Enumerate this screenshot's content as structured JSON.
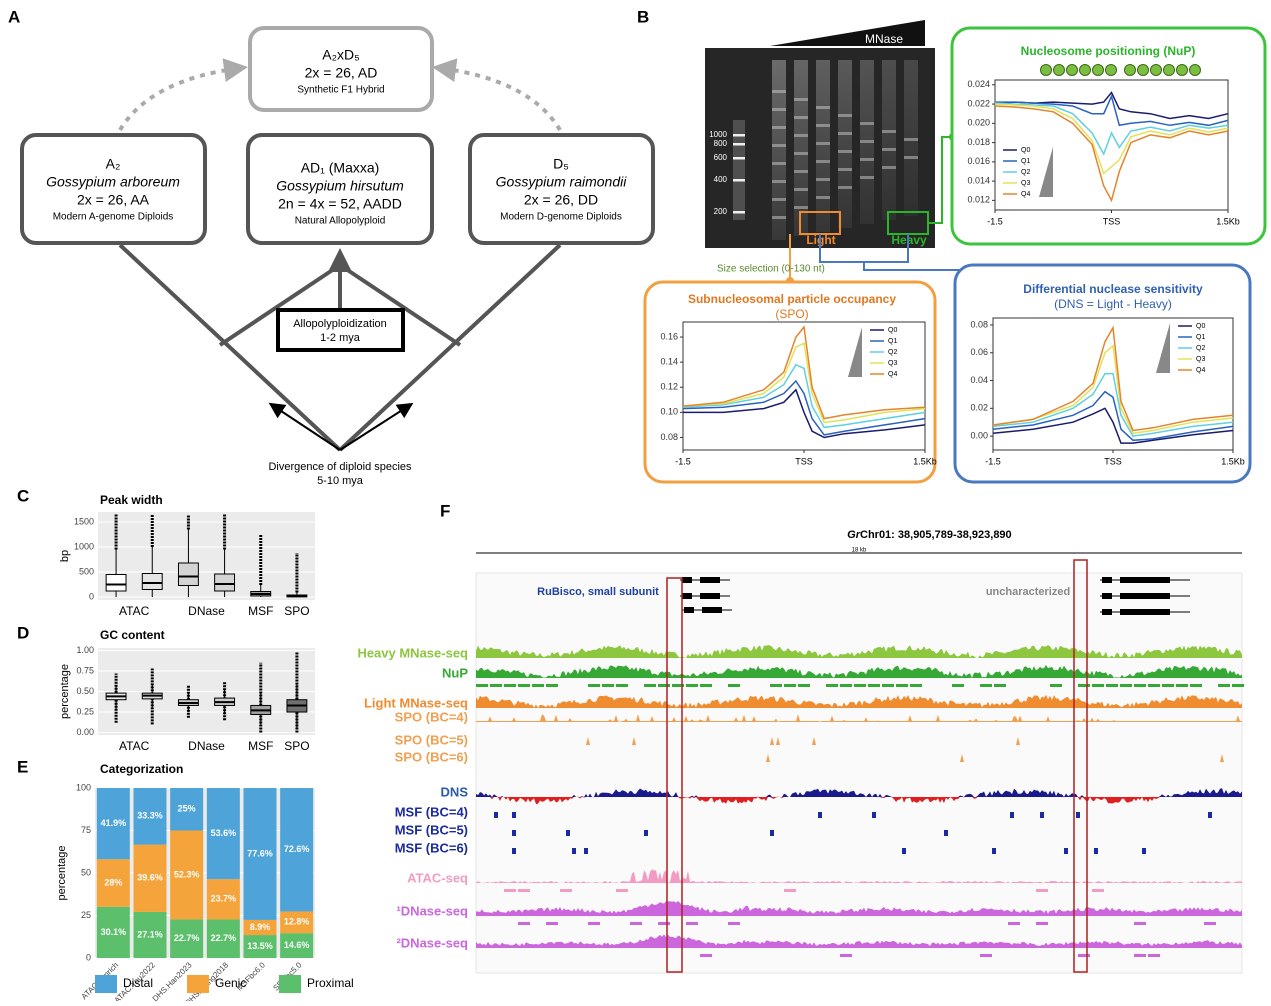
{
  "panel_labels": {
    "A": "A",
    "B": "B",
    "C": "C",
    "D": "D",
    "E": "E",
    "F": "F"
  },
  "diagram": {
    "hybrid": {
      "name": "A₂xD₅",
      "line1": "2x = 26, AD",
      "line2": "Synthetic F1 Hybrid"
    },
    "a2": {
      "name": "A₂",
      "species": "Gossypium arboreum",
      "ploidy": "2x = 26, AA",
      "desc": "Modern A-genome Diploids"
    },
    "ad1": {
      "name": "AD₁ (Maxxa)",
      "species": "Gossypium hirsutum",
      "ploidy": "2n = 4x = 52, AADD",
      "desc": "Natural Allopolyploid"
    },
    "d5": {
      "name": "D₅",
      "species": "Gossypium raimondii",
      "ploidy": "2x = 26, DD",
      "desc": "Modern D-genome Diploids"
    },
    "event": {
      "line1": "Allopolyploidization",
      "line2": "1-2 mya"
    },
    "divergence": {
      "line1": "Divergence of diploid species",
      "line2": "5-10 mya"
    }
  },
  "gel": {
    "enzyme": "MNase",
    "ladder": [
      "1000",
      "800",
      "600",
      "400",
      "200"
    ],
    "light": "Light",
    "heavy": "Heavy",
    "size_selection": "Size selection (0-130 nt)"
  },
  "chart_data": [
    {
      "type": "line",
      "title": "Nucleosome positioning (NuP)",
      "color": "#2bb52b",
      "legend": "lower left",
      "x": [
        -1.5,
        -1.25,
        -1,
        -0.75,
        -0.5,
        -0.25,
        -0.1,
        0,
        0.1,
        0.25,
        0.5,
        0.75,
        1,
        1.25,
        1.5
      ],
      "xlim": [
        -1.5,
        1.5
      ],
      "xticks": [
        -1.5,
        {
          "value": 0,
          "label": "TSS"
        },
        {
          "value": 1.5,
          "label": "1.5Kb"
        }
      ],
      "ylim": [
        0.011,
        0.0245
      ],
      "yticks": [
        0.012,
        0.014,
        0.016,
        0.018,
        {
          "value": 0.02,
          "label": "0.020"
        },
        0.022,
        0.024
      ],
      "series": [
        {
          "name": "Q0",
          "color": "#1a1a6e",
          "values": [
            0.022,
            0.0222,
            0.0221,
            0.0222,
            0.0221,
            0.022,
            0.0222,
            0.0232,
            0.0215,
            0.0212,
            0.021,
            0.0205,
            0.0208,
            0.0205,
            0.021
          ]
        },
        {
          "name": "Q1",
          "color": "#2a62c0",
          "values": [
            0.0222,
            0.0222,
            0.0221,
            0.022,
            0.0218,
            0.021,
            0.021,
            0.0228,
            0.0198,
            0.02,
            0.0202,
            0.0198,
            0.0201,
            0.0198,
            0.0203
          ]
        },
        {
          "name": "Q2",
          "color": "#5fd0e0",
          "values": [
            0.0221,
            0.022,
            0.0219,
            0.0218,
            0.021,
            0.019,
            0.0168,
            0.019,
            0.0175,
            0.0192,
            0.0196,
            0.0192,
            0.0198,
            0.0195,
            0.0198
          ]
        },
        {
          "name": "Q3",
          "color": "#e2e25a",
          "values": [
            0.022,
            0.0219,
            0.0218,
            0.0215,
            0.0205,
            0.0182,
            0.0148,
            0.0155,
            0.0162,
            0.0186,
            0.0192,
            0.0188,
            0.0195,
            0.0191,
            0.0195
          ]
        },
        {
          "name": "Q4",
          "color": "#e5842a",
          "values": [
            0.0218,
            0.0217,
            0.0215,
            0.0212,
            0.02,
            0.0178,
            0.0135,
            0.012,
            0.015,
            0.018,
            0.0188,
            0.0185,
            0.0192,
            0.0188,
            0.0192
          ]
        }
      ]
    },
    {
      "type": "line",
      "title": "Subnucleosomal particle occupancy",
      "subtitle": "(SPO)",
      "color": "#e07820",
      "legend": "upper right",
      "x": [
        -1.5,
        -1,
        -0.5,
        -0.25,
        -0.1,
        0,
        0.1,
        0.25,
        0.5,
        1,
        1.5
      ],
      "xlim": [
        -1.5,
        1.5
      ],
      "xticks": [
        -1.5,
        {
          "value": 0,
          "label": "TSS"
        },
        {
          "value": 1.5,
          "label": "1.5Kb"
        }
      ],
      "ylim": [
        0.07,
        0.172
      ],
      "yticks": [
        0.08,
        {
          "value": 0.1,
          "label": "0.10"
        },
        0.12,
        0.14,
        0.16
      ],
      "series": [
        {
          "name": "Q0",
          "color": "#1a1a6e",
          "values": [
            0.1,
            0.1,
            0.103,
            0.108,
            0.118,
            0.1,
            0.085,
            0.08,
            0.083,
            0.086,
            0.09
          ]
        },
        {
          "name": "Q1",
          "color": "#2a62c0",
          "values": [
            0.103,
            0.104,
            0.108,
            0.115,
            0.125,
            0.115,
            0.095,
            0.082,
            0.085,
            0.09,
            0.095
          ]
        },
        {
          "name": "Q2",
          "color": "#5fd0e0",
          "values": [
            0.104,
            0.106,
            0.112,
            0.122,
            0.138,
            0.135,
            0.105,
            0.088,
            0.09,
            0.095,
            0.1
          ]
        },
        {
          "name": "Q3",
          "color": "#e2e25a",
          "values": [
            0.105,
            0.107,
            0.115,
            0.128,
            0.152,
            0.155,
            0.115,
            0.092,
            0.094,
            0.1,
            0.103
          ]
        },
        {
          "name": "Q4",
          "color": "#e5842a",
          "values": [
            0.105,
            0.108,
            0.118,
            0.132,
            0.16,
            0.168,
            0.12,
            0.095,
            0.098,
            0.102,
            0.104
          ]
        }
      ]
    },
    {
      "type": "line",
      "title": "Differential nuclease sensitivity",
      "subtitle": "(DNS = Light - Heavy)",
      "color": "#3060b0",
      "legend": "upper right",
      "x": [
        -1.5,
        -1,
        -0.5,
        -0.25,
        -0.1,
        0,
        0.1,
        0.25,
        0.5,
        1,
        1.5
      ],
      "xlim": [
        -1.5,
        1.5
      ],
      "xticks": [
        -1.5,
        {
          "value": 0,
          "label": "TSS"
        },
        {
          "value": 1.5,
          "label": "1.5Kb"
        }
      ],
      "ylim": [
        -0.01,
        0.085
      ],
      "yticks": [
        {
          "value": 0,
          "label": "0.00"
        },
        0.02,
        0.04,
        0.06,
        0.08
      ],
      "series": [
        {
          "name": "Q0",
          "color": "#1a1a6e",
          "values": [
            0.002,
            0.005,
            0.01,
            0.016,
            0.02,
            0.01,
            -0.005,
            -0.005,
            -0.003,
            0.001,
            0.004
          ]
        },
        {
          "name": "Q1",
          "color": "#2a62c0",
          "values": [
            0.005,
            0.008,
            0.015,
            0.022,
            0.032,
            0.028,
            0.005,
            -0.003,
            -0.002,
            0.003,
            0.007
          ]
        },
        {
          "name": "Q2",
          "color": "#5fd0e0",
          "values": [
            0.007,
            0.01,
            0.02,
            0.03,
            0.045,
            0.045,
            0.015,
            0,
            0.002,
            0.007,
            0.01
          ]
        },
        {
          "name": "Q3",
          "color": "#e2e25a",
          "values": [
            0.008,
            0.012,
            0.022,
            0.035,
            0.06,
            0.065,
            0.02,
            0.002,
            0.004,
            0.01,
            0.013
          ]
        },
        {
          "name": "Q4",
          "color": "#e5842a",
          "values": [
            0.008,
            0.012,
            0.025,
            0.038,
            0.068,
            0.078,
            0.025,
            0.004,
            0.006,
            0.012,
            0.015
          ]
        }
      ]
    },
    {
      "type": "box",
      "title": "Peak width",
      "ylabel": "bp",
      "categories": [
        "ATAC",
        null,
        "DNase",
        null,
        "MSF",
        "SPO"
      ],
      "colors": [
        "#ffffff",
        "#e4e4e4",
        "#d4d4d4",
        "#d4d4d4",
        "#a8a8a8",
        "#8a8a8a"
      ],
      "ylim": [
        -60,
        1700
      ],
      "yticks": [
        0,
        500,
        1000,
        1500
      ],
      "boxes": [
        {
          "min": 0,
          "q1": 120,
          "median": 250,
          "q3": 450,
          "max": 950,
          "outliers": [
            950,
            1650
          ]
        },
        {
          "min": 0,
          "q1": 150,
          "median": 280,
          "q3": 470,
          "max": 1000,
          "outliers": [
            1000,
            1650
          ]
        },
        {
          "min": 0,
          "q1": 230,
          "median": 410,
          "q3": 680,
          "max": 1350,
          "outliers": [
            1350,
            1650
          ]
        },
        {
          "min": 0,
          "q1": 120,
          "median": 260,
          "q3": 460,
          "max": 950,
          "outliers": [
            950,
            1650
          ]
        },
        {
          "min": 0,
          "q1": 20,
          "median": 60,
          "q3": 110,
          "max": 240,
          "outliers": [
            240,
            1250
          ]
        },
        {
          "min": 0,
          "q1": 5,
          "median": 15,
          "q3": 40,
          "max": 90,
          "outliers": [
            90,
            880
          ]
        }
      ]
    },
    {
      "type": "box",
      "title": "GC content",
      "ylabel": "percentage",
      "categories": [
        "ATAC",
        null,
        "DNase",
        null,
        "MSF",
        "SPO"
      ],
      "colors": [
        "#ececec",
        "#dcdcdc",
        "#cccccc",
        "#cccccc",
        "#a0a0a0",
        "#707070"
      ],
      "ylim": [
        -0.03,
        1.03
      ],
      "yticks": [
        {
          "value": 0,
          "label": "0.00"
        },
        0.25,
        {
          "value": 0.5,
          "label": "0.50"
        },
        0.75,
        {
          "value": 1,
          "label": "1.00"
        }
      ],
      "boxes": [
        {
          "min": 0.28,
          "q1": 0.4,
          "median": 0.44,
          "q3": 0.48,
          "max": 0.58,
          "outliers": [
            0.12,
            0.72
          ]
        },
        {
          "min": 0.3,
          "q1": 0.41,
          "median": 0.45,
          "q3": 0.48,
          "max": 0.58,
          "outliers": [
            0.1,
            0.78
          ]
        },
        {
          "min": 0.25,
          "q1": 0.33,
          "median": 0.36,
          "q3": 0.4,
          "max": 0.48,
          "outliers": [
            0.18,
            0.58
          ]
        },
        {
          "min": 0.22,
          "q1": 0.33,
          "median": 0.37,
          "q3": 0.42,
          "max": 0.52,
          "outliers": [
            0.15,
            0.62
          ]
        },
        {
          "min": 0.1,
          "q1": 0.22,
          "median": 0.27,
          "q3": 0.33,
          "max": 0.48,
          "outliers": [
            0,
            0.85
          ]
        },
        {
          "min": 0.05,
          "q1": 0.25,
          "median": 0.33,
          "q3": 0.4,
          "max": 0.6,
          "outliers": [
            0,
            0.98
          ]
        }
      ]
    },
    {
      "type": "stacked_bar",
      "title": "Categorization",
      "ylabel": "percentage",
      "categories": [
        "ATAC.genrich",
        "ATAC.You2022",
        "DHS.Han2023",
        "DHS.Wang2018",
        "MSFbc6.0",
        "SPObc5.0"
      ],
      "ylim": [
        0,
        100
      ],
      "yticks": [
        0,
        25,
        50,
        75,
        100
      ],
      "series": [
        {
          "name": "Distal",
          "color": "#4ea4d8",
          "values": [
            41.9,
            33.3,
            25,
            53.6,
            77.6,
            72.6
          ],
          "value_labels": [
            "41.9%",
            "33.3%",
            "25%",
            "53.6%",
            "77.6%",
            "72.6%"
          ]
        },
        {
          "name": "Genic",
          "color": "#f4a43a",
          "values": [
            28,
            39.6,
            52.3,
            23.7,
            8.9,
            12.8
          ],
          "value_labels": [
            "28%",
            "39.6%",
            "52.3%",
            "23.7%",
            "8.9%",
            "12.8%"
          ]
        },
        {
          "name": "Proximal",
          "color": "#5bbf6b",
          "values": [
            30.1,
            27.1,
            22.7,
            22.7,
            13.5,
            14.6
          ],
          "value_labels": [
            "30.1%",
            "27.1%",
            "22.7%",
            "22.7%",
            "13.5%",
            "14.6%"
          ]
        }
      ]
    }
  ],
  "browser": {
    "title_species": "Gr",
    "title_region": " Chr01: 38,905,789-38,923,890",
    "scale": "18 kb",
    "annotations": [
      "RuBisco, small subunit",
      "uncharacterized"
    ],
    "tracks": [
      {
        "label": "Heavy MNase-seq",
        "color": "#8dc63f"
      },
      {
        "label": "NuP",
        "color": "#36a836"
      },
      {
        "label": "Light MNase-seq",
        "color": "#f08c30"
      },
      {
        "label": "SPO (BC=4)",
        "color": "#f0a050"
      },
      {
        "label": "SPO (BC=5)",
        "color": "#f0a050"
      },
      {
        "label": "SPO (BC=6)",
        "color": "#f0a050"
      },
      {
        "label": "DNS",
        "color": "#2a5aa8"
      },
      {
        "label": "MSF (BC=4)",
        "color": "#1a2aa0"
      },
      {
        "label": "MSF (BC=5)",
        "color": "#1a2aa0"
      },
      {
        "label": "MSF (BC=6)",
        "color": "#1a2aa0"
      },
      {
        "label": "ATAC-seq",
        "color": "#f29cc4"
      },
      {
        "label": "¹DNase-seq",
        "color": "#cc66dd"
      },
      {
        "label": "²DNase-seq",
        "color": "#cc66dd"
      }
    ]
  }
}
